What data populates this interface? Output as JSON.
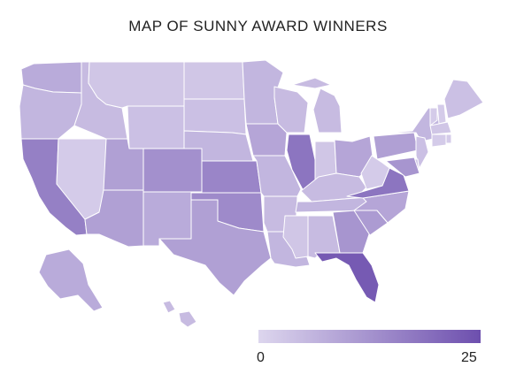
{
  "title": "MAP OF SUNNY AWARD WINNERS",
  "legend": {
    "min_label": "0",
    "max_label": "25",
    "min": 0,
    "max": 25,
    "color_low": "#ddd6ee",
    "color_high": "#6d4fae"
  },
  "chart_data": {
    "type": "choropleth",
    "scale": [
      0,
      25
    ],
    "values": {
      "WA": 8,
      "OR": 6,
      "CA": 16,
      "NV": 2,
      "ID": 5,
      "MT": 3,
      "WY": 4,
      "UT": 10,
      "CO": 13,
      "AZ": 10,
      "NM": 8,
      "ND": 3,
      "SD": 4,
      "NE": 6,
      "KS": 15,
      "OK": 14,
      "TX": 10,
      "MN": 6,
      "IA": 9,
      "MO": 6,
      "AR": 5,
      "LA": 6,
      "WI": 5,
      "IL": 18,
      "MI": 5,
      "IN": 3,
      "OH": 9,
      "KY": 5,
      "TN": 6,
      "MS": 3,
      "AL": 5,
      "GA": 12,
      "FL": 23,
      "SC": 11,
      "NC": 9,
      "VA": 18,
      "WV": 2,
      "PA": 10,
      "NY": 6,
      "VT": 2,
      "NH": 2,
      "ME": 4,
      "MA": 3,
      "RI": 2,
      "CT": 2,
      "NJ": 4,
      "DE": 3,
      "MD": 12,
      "AK": 8,
      "HI": 5
    }
  }
}
